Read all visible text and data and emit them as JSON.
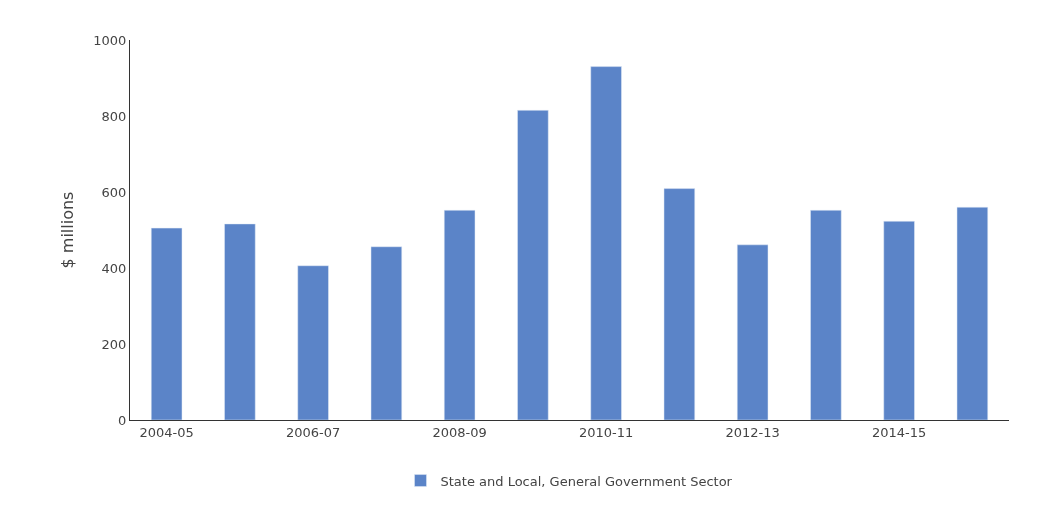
{
  "chart_data": {
    "type": "bar",
    "ylabel": "$ millions",
    "categories": [
      "2004-05",
      null,
      "2006-07",
      null,
      "2008-09",
      null,
      "2010-11",
      null,
      "2012-13",
      null,
      "2014-15",
      null
    ],
    "series": [
      {
        "name": "State and Local, General Government Sector",
        "color": "#5b84c8",
        "values": [
          505,
          516,
          406,
          456,
          552,
          815,
          930,
          609,
          461,
          552,
          523,
          560
        ]
      }
    ],
    "ylim": [
      0,
      1000
    ],
    "yticks": [
      0,
      200,
      400,
      600,
      800,
      1000
    ],
    "legend": "bottom"
  }
}
